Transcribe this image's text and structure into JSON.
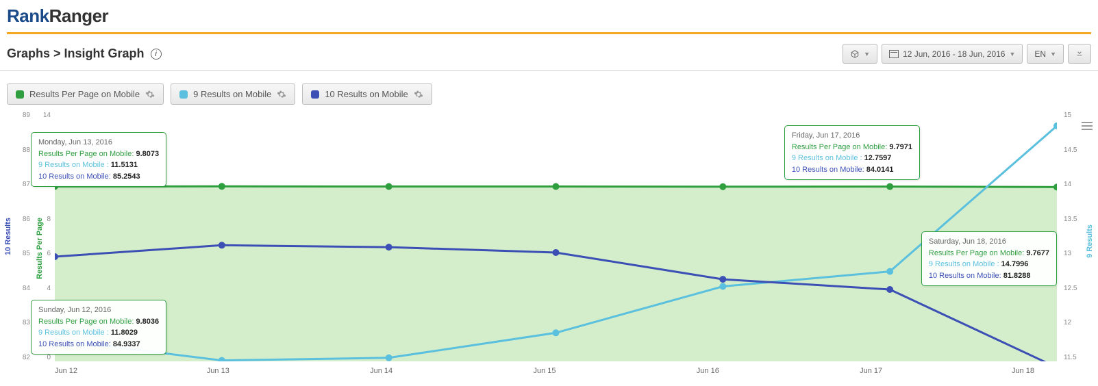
{
  "logo": {
    "part1": "Rank",
    "part2": "Ranger"
  },
  "breadcrumb": "Graphs > Insight Graph",
  "toolbar": {
    "date_range": "12 Jun, 2016 - 18 Jun, 2016",
    "lang": "EN"
  },
  "series": [
    {
      "label": "Results Per Page on Mobile",
      "color": "#2e9e3f"
    },
    {
      "label": "9 Results on Mobile",
      "color": "#5bc0de"
    },
    {
      "label": "10 Results on Mobile",
      "color": "#3b4fb5"
    }
  ],
  "chart": {
    "type": "line",
    "background_color": "#ffffff",
    "area_fill": "#b7e2a8",
    "area_fill_opacity": 0.6,
    "line_width": 3,
    "marker_radius": 5,
    "x_categories": [
      "Jun 12",
      "Jun 13",
      "Jun 14",
      "Jun 15",
      "Jun 16",
      "Jun 17",
      "Jun 18"
    ],
    "axis_left_outer": {
      "label": "10 Results",
      "color": "#3b4fb5",
      "min": 82,
      "max": 89,
      "step": 1
    },
    "axis_left_inner": {
      "label": "Results Per Page",
      "color": "#2e9e3f",
      "min": 0,
      "max": 14,
      "step": 2
    },
    "axis_right": {
      "label": "9 Results",
      "color": "#5bc0de",
      "min": 11.5,
      "max": 15,
      "step": 0.5
    },
    "series_data": {
      "rpp": {
        "color": "#2e9e3f",
        "values": [
          9.8036,
          9.8073,
          9.8,
          9.8,
          9.79,
          9.7971,
          9.7677
        ],
        "axis": "left_inner",
        "fill": true
      },
      "nine": {
        "color": "#5bc0de",
        "values": [
          11.8029,
          11.5131,
          11.55,
          11.9,
          12.55,
          12.7597,
          14.7996
        ],
        "axis": "right"
      },
      "ten": {
        "color": "#3b4fb5",
        "values": [
          84.9337,
          85.2543,
          85.2,
          85.05,
          84.3,
          84.0141,
          81.8288
        ],
        "axis": "left_outer"
      }
    },
    "x_tick_color": "#666666",
    "y_tick_color": "#888888",
    "tick_fontsize": 10,
    "label_fontsize": 11
  },
  "tooltips": [
    {
      "pos": "t1",
      "date": "Monday, Jun 13, 2016",
      "rpp": "9.8073",
      "nine": "11.5131",
      "ten": "85.2543"
    },
    {
      "pos": "t2",
      "date": "Sunday, Jun 12, 2016",
      "rpp": "9.8036",
      "nine": "11.8029",
      "ten": "84.9337"
    },
    {
      "pos": "t3",
      "date": "Friday, Jun 17, 2016",
      "rpp": "9.7971",
      "nine": "12.7597",
      "ten": "84.0141"
    },
    {
      "pos": "t4",
      "date": "Saturday, Jun 18, 2016",
      "rpp": "9.7677",
      "nine": "14.7996",
      "ten": "81.8288"
    }
  ],
  "tooltip_labels": {
    "rpp": "Results Per Page on Mobile: ",
    "nine": "9 Results on Mobile : ",
    "ten": "10 Results on Mobile: "
  }
}
